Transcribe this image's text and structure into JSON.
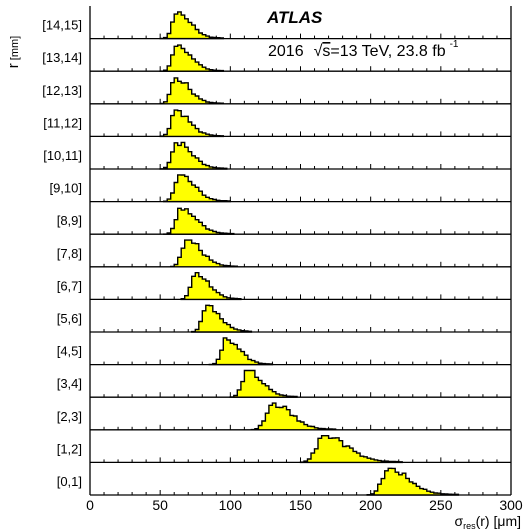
{
  "chart_data": {
    "type": "histogram-stack",
    "experiment": "ATLAS",
    "info_prefix": "2016",
    "info_sqrt": "s",
    "info_energy": "=13 TeV, 23.8 fb",
    "info_exp": "-1",
    "ylabel": "r",
    "ylabel_unit": "[mm]",
    "xlabel_sigma": "σ",
    "xlabel_sub": "res",
    "xlabel_rest": "(r) [μm]",
    "xlim": [
      0,
      300
    ],
    "xticks": [
      "0",
      "50",
      "100",
      "150",
      "200",
      "250",
      "300"
    ],
    "fill_color": "#ffff00",
    "rows": [
      {
        "label": "[14,15]",
        "peak": 62,
        "width": 10
      },
      {
        "label": "[13,14]",
        "peak": 62,
        "width": 10
      },
      {
        "label": "[12,13]",
        "peak": 61,
        "width": 10
      },
      {
        "label": "[11,12]",
        "peak": 61,
        "width": 10
      },
      {
        "label": "[10,11]",
        "peak": 62,
        "width": 11
      },
      {
        "label": "[9,10]",
        "peak": 64,
        "width": 11
      },
      {
        "label": "[8,9]",
        "peak": 65,
        "width": 11
      },
      {
        "label": "[7,8]",
        "peak": 69,
        "width": 11
      },
      {
        "label": "[6,7]",
        "peak": 75,
        "width": 10
      },
      {
        "label": "[5,6]",
        "peak": 83,
        "width": 10
      },
      {
        "label": "[4,5]",
        "peak": 97,
        "width": 10
      },
      {
        "label": "[3,4]",
        "peak": 112,
        "width": 11
      },
      {
        "label": "[2,3]",
        "peak": 130,
        "width": 14
      },
      {
        "label": "[1,2]",
        "peak": 167,
        "width": 17
      },
      {
        "label": "[0,1]",
        "peak": 213,
        "width": 15
      }
    ]
  }
}
